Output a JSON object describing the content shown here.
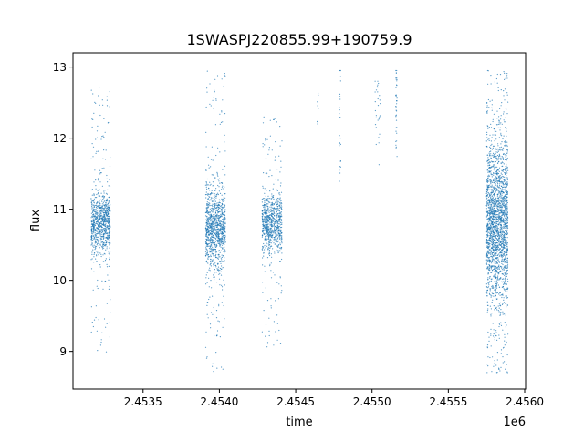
{
  "chart_data": {
    "type": "scatter",
    "title": "1SWASPJ220855.99+190759.9",
    "xlabel": "time",
    "ylabel": "flux",
    "x_offset_label": "1e6",
    "xlim": [
      2453041,
      2456006
    ],
    "ylim": [
      8.47,
      13.2
    ],
    "xticks": [
      2453500,
      2454000,
      2454500,
      2455000,
      2455500,
      2456000
    ],
    "xtick_labels": [
      "2.4535",
      "2.4540",
      "2.4545",
      "2.4550",
      "2.4555",
      "2.4560"
    ],
    "yticks": [
      9,
      10,
      11,
      12,
      13
    ],
    "ytick_labels": [
      "9",
      "10",
      "11",
      "12",
      "13"
    ],
    "grid": false,
    "color": "#1f77b4",
    "clusters": [
      {
        "time_range": [
          2453160,
          2453285
        ],
        "flux_center": 10.8,
        "flux_spread": 0.22,
        "flux_range": [
          8.95,
          12.75
        ],
        "points": 900
      },
      {
        "time_range": [
          2453910,
          2454040
        ],
        "flux_center": 10.75,
        "flux_spread": 0.28,
        "flux_range": [
          8.7,
          12.95
        ],
        "points": 1100
      },
      {
        "time_range": [
          2454280,
          2454410
        ],
        "flux_center": 10.8,
        "flux_spread": 0.2,
        "flux_range": [
          9.05,
          12.3
        ],
        "points": 800
      },
      {
        "time_range": [
          2454640,
          2454650
        ],
        "flux_center": 12.5,
        "flux_spread": 0.25,
        "flux_range": [
          12.2,
          12.9
        ],
        "points": 8
      },
      {
        "time_range": [
          2454785,
          2454795
        ],
        "flux_center": 12.4,
        "flux_spread": 0.5,
        "flux_range": [
          10.4,
          12.95
        ],
        "points": 25
      },
      {
        "time_range": [
          2455020,
          2455055
        ],
        "flux_center": 12.4,
        "flux_spread": 0.3,
        "flux_range": [
          11.3,
          12.8
        ],
        "points": 30
      },
      {
        "time_range": [
          2455155,
          2455165
        ],
        "flux_center": 12.4,
        "flux_spread": 0.35,
        "flux_range": [
          11.6,
          12.95
        ],
        "points": 40
      },
      {
        "time_range": [
          2455750,
          2455890
        ],
        "flux_center": 10.8,
        "flux_spread": 0.55,
        "flux_range": [
          8.7,
          12.95
        ],
        "points": 2200
      }
    ]
  }
}
